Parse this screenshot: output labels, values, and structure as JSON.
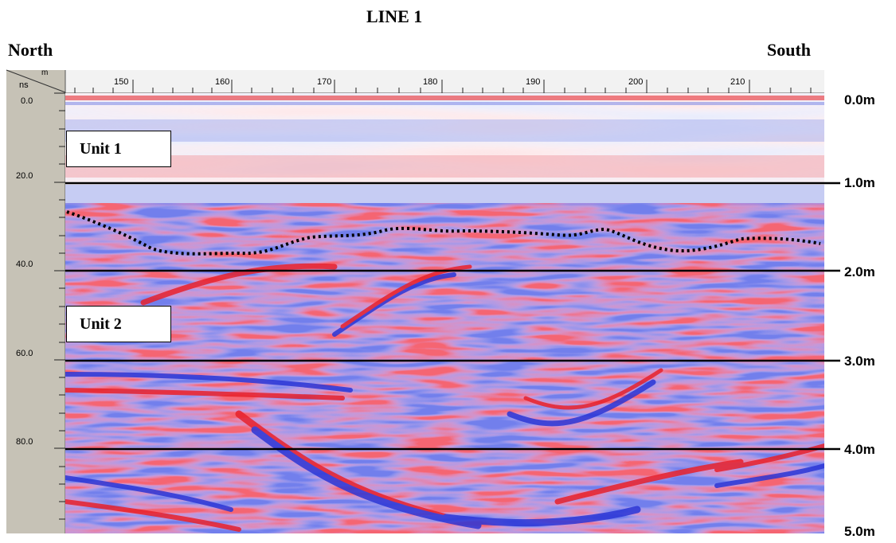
{
  "title": "LINE 1",
  "direction_left": "North",
  "direction_right": "South",
  "time_axis": {
    "unit": "ns",
    "top_label": "m",
    "ticks": [
      "0.0",
      "20.0",
      "40.0",
      "60.0",
      "80.0"
    ]
  },
  "distance_axis": {
    "ticks": [
      "150",
      "160",
      "170",
      "180",
      "190",
      "200",
      "210"
    ]
  },
  "depth_labels": [
    "0.0m",
    "1.0m",
    "2.0m",
    "3.0m",
    "4.0m",
    "5.0m"
  ],
  "units": [
    "Unit 1",
    "Unit 2"
  ],
  "colors": {
    "positive": "#e8212b",
    "negative": "#2b36d6",
    "frame": "#c6c2b6"
  }
}
